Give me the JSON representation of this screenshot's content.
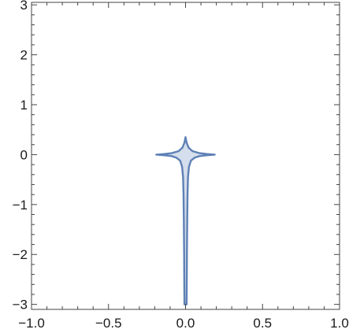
{
  "chart_data": {
    "type": "area",
    "title": "",
    "xlabel": "",
    "ylabel": "",
    "xlim": [
      -1.0,
      1.0
    ],
    "ylim": [
      -3.1,
      3.05
    ],
    "grid": false,
    "legend": "none",
    "x_ticks": [
      -1.0,
      -0.5,
      0.0,
      0.5,
      1.0
    ],
    "x_tick_labels": [
      "−1.0",
      "−0.5",
      "0.0",
      "0.5",
      "1.0"
    ],
    "y_ticks": [
      -3,
      -2,
      -1,
      0,
      1,
      2,
      3
    ],
    "y_tick_labels": [
      "−3",
      "−2",
      "−1",
      "0",
      "1",
      "2",
      "3"
    ],
    "x_minor_step": 0.1,
    "y_minor_step": 0.2,
    "colors": {
      "edge": "#5e81b5",
      "fill": "#d5deec",
      "frame": "#444444",
      "text": "#1a1a1a"
    },
    "series": [
      {
        "fill": true,
        "points": [
          [
            0.0,
            0.35
          ],
          [
            0.007,
            0.24
          ],
          [
            0.02,
            0.14
          ],
          [
            0.045,
            0.07
          ],
          [
            0.09,
            0.03
          ],
          [
            0.14,
            0.012
          ],
          [
            0.19,
            0.0
          ],
          [
            0.14,
            -0.012
          ],
          [
            0.09,
            -0.03
          ],
          [
            0.06,
            -0.06
          ],
          [
            0.035,
            -0.12
          ],
          [
            0.022,
            -0.25
          ],
          [
            0.016,
            -0.45
          ],
          [
            0.013,
            -0.8
          ],
          [
            0.011,
            -1.3
          ],
          [
            0.009,
            -2.0
          ],
          [
            0.008,
            -2.6
          ],
          [
            0.007,
            -3.0
          ],
          [
            -0.007,
            -3.0
          ],
          [
            -0.008,
            -2.6
          ],
          [
            -0.009,
            -2.0
          ],
          [
            -0.011,
            -1.3
          ],
          [
            -0.013,
            -0.8
          ],
          [
            -0.016,
            -0.45
          ],
          [
            -0.022,
            -0.25
          ],
          [
            -0.035,
            -0.12
          ],
          [
            -0.06,
            -0.06
          ],
          [
            -0.09,
            -0.03
          ],
          [
            -0.14,
            -0.012
          ],
          [
            -0.19,
            0.0
          ],
          [
            -0.14,
            0.012
          ],
          [
            -0.09,
            0.03
          ],
          [
            -0.045,
            0.07
          ],
          [
            -0.02,
            0.14
          ],
          [
            -0.007,
            0.24
          ]
        ]
      }
    ]
  }
}
